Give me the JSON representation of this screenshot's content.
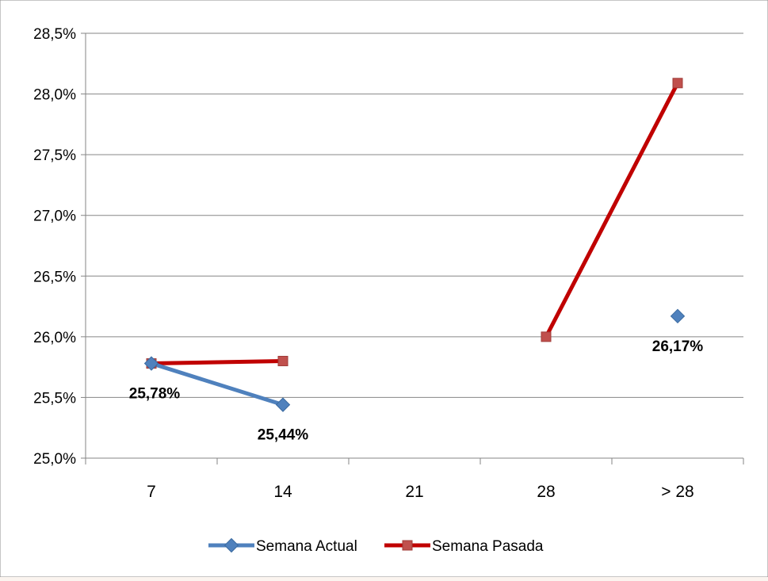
{
  "chart_data": {
    "type": "line",
    "categories": [
      "7",
      "14",
      "21",
      "28",
      "> 28"
    ],
    "y_tick_labels": [
      "25,0%",
      "25,5%",
      "26,0%",
      "26,5%",
      "27,0%",
      "27,5%",
      "28,0%",
      "28,5%"
    ],
    "ylim": [
      25.0,
      28.5
    ],
    "grid": true,
    "legend_position": "bottom",
    "series": [
      {
        "name": "Semana Actual",
        "color": "#4f81bd",
        "marker": "diamond",
        "values": [
          25.78,
          25.44,
          null,
          null,
          26.17
        ],
        "labels": [
          "25,78%",
          "25,44%",
          null,
          null,
          "26,17%"
        ]
      },
      {
        "name": "Semana Pasada",
        "color": "#c00000",
        "marker_color": "#c0504d",
        "marker": "square",
        "values": [
          25.78,
          25.8,
          null,
          26.0,
          28.09
        ],
        "labels": [
          null,
          null,
          null,
          null,
          null
        ]
      }
    ]
  }
}
